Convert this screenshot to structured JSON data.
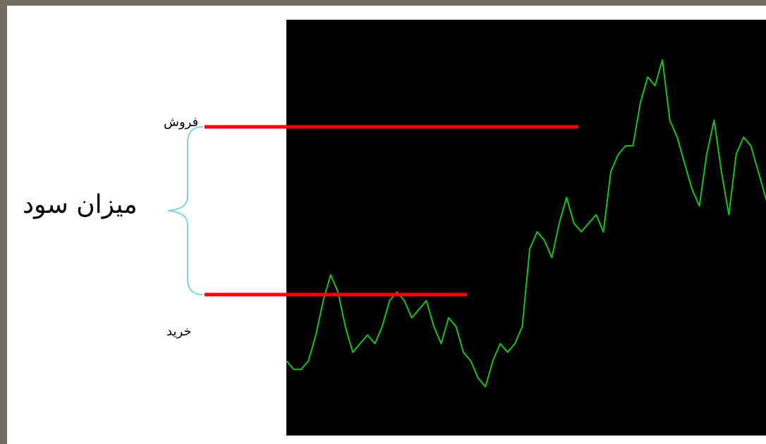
{
  "labels": {
    "sell": "فروش",
    "buy": "خرید",
    "profit": "میزان سود"
  },
  "colors": {
    "price_line": "#18c418",
    "level_line": "#ff0000",
    "brace": "#7fd3e0",
    "plot_background": "#000000"
  },
  "chart_data": {
    "type": "line",
    "series": [
      {
        "values": [
          30,
          29,
          29,
          30,
          33,
          37,
          40,
          38,
          34,
          31,
          32,
          33,
          32,
          34,
          37,
          38,
          37,
          35,
          36,
          37,
          34,
          32,
          35,
          34,
          31,
          30,
          28,
          27,
          30,
          32,
          31,
          32,
          34,
          43,
          45,
          44,
          42,
          46,
          49,
          46,
          45,
          46,
          47,
          45,
          52,
          54,
          55,
          55,
          60,
          63,
          62,
          65,
          58,
          56,
          53,
          50,
          48,
          54,
          58,
          52,
          47,
          54,
          56,
          55,
          52,
          49,
          46
        ]
      }
    ],
    "levels": [
      {
        "name": "sell",
        "label": "فروش"
      },
      {
        "name": "buy",
        "label": "خرید"
      }
    ],
    "annotation": "میزان سود"
  }
}
